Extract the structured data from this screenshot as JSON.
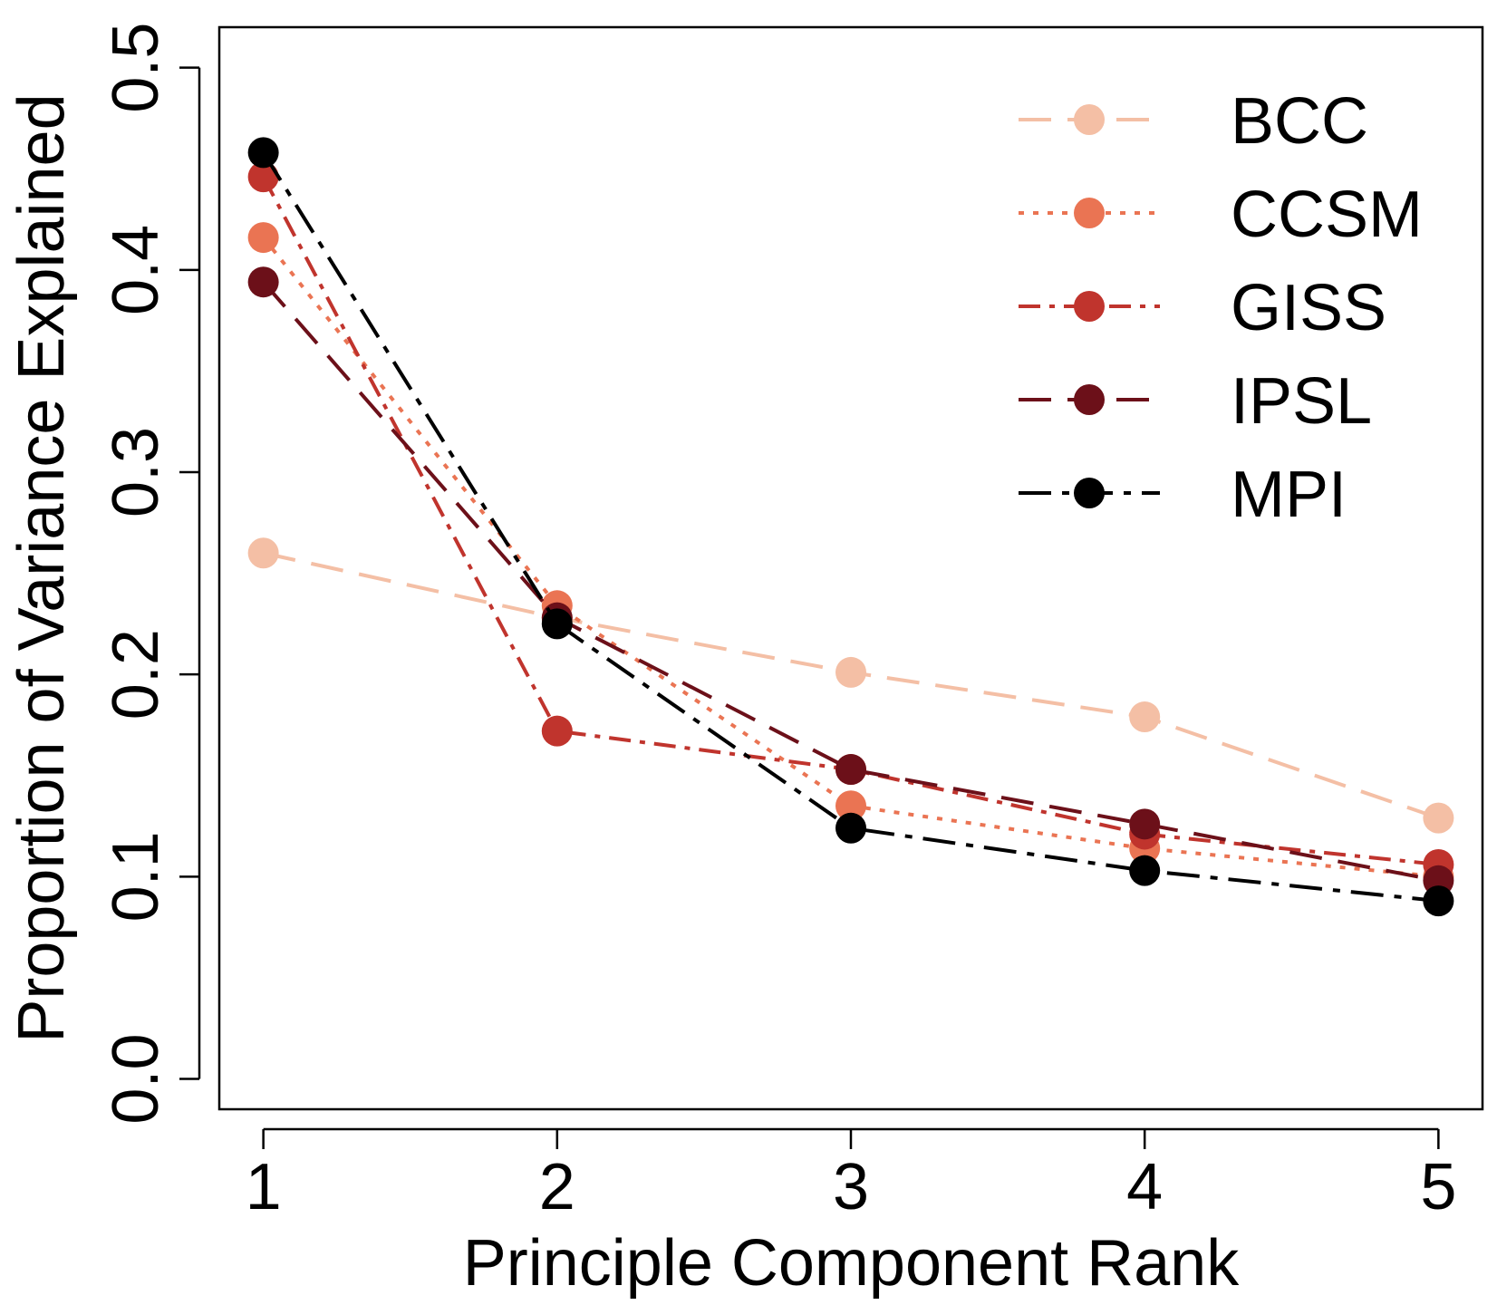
{
  "chart_data": {
    "type": "line",
    "xlabel": "Principle Component Rank",
    "ylabel": "Proportion of Variance Explained",
    "x": [
      1,
      2,
      3,
      4,
      5
    ],
    "xlim": [
      0.85,
      5.15
    ],
    "ylim": [
      -0.015,
      0.52
    ],
    "x_ticks": [
      "1",
      "2",
      "3",
      "4",
      "5"
    ],
    "y_ticks": [
      "0.0",
      "0.1",
      "0.2",
      "0.3",
      "0.4",
      "0.5"
    ],
    "grid": false,
    "legend_position": "top-right",
    "series": [
      {
        "name": "BCC",
        "color": "#f4bfa5",
        "line_style": "long-dash",
        "values": [
          0.26,
          0.228,
          0.201,
          0.179,
          0.129
        ]
      },
      {
        "name": "CCSM",
        "color": "#ea7453",
        "line_style": "dotted",
        "values": [
          0.416,
          0.234,
          0.135,
          0.114,
          0.1
        ]
      },
      {
        "name": "GISS",
        "color": "#c0342d",
        "line_style": "dash-dot",
        "values": [
          0.446,
          0.172,
          0.153,
          0.121,
          0.106
        ]
      },
      {
        "name": "IPSL",
        "color": "#6c1019",
        "line_style": "long-dash",
        "values": [
          0.394,
          0.228,
          0.153,
          0.126,
          0.098
        ]
      },
      {
        "name": "MPI",
        "color": "#000000",
        "line_style": "long-dash-dot",
        "values": [
          0.458,
          0.225,
          0.124,
          0.103,
          0.088
        ]
      }
    ]
  }
}
